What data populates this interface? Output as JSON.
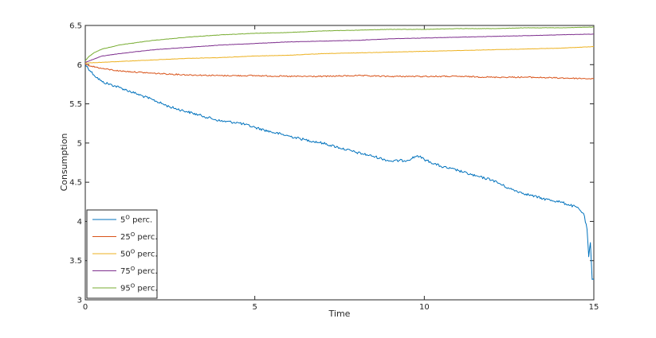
{
  "chart_data": {
    "type": "line",
    "title": "",
    "xlabel": "Time",
    "ylabel": "Consumption",
    "xlim": [
      0,
      15
    ],
    "ylim": [
      3,
      6.5
    ],
    "xticks": [
      0,
      5,
      10,
      15
    ],
    "yticks": [
      3,
      3.5,
      4,
      4.5,
      5,
      5.5,
      6,
      6.5
    ],
    "xtick_labels": [
      "0",
      "5",
      "10",
      "15"
    ],
    "ytick_labels": [
      "3",
      "3.5",
      "4",
      "4.5",
      "5",
      "5.5",
      "6",
      "6.5"
    ],
    "grid": false,
    "legend_position": "bottom-left",
    "series": [
      {
        "name_base": "5",
        "name_sup": "O",
        "name_suffix": " perc.",
        "color": "#0072BD",
        "x": [
          0,
          0.25,
          0.5,
          1,
          1.5,
          2,
          2.5,
          3,
          3.5,
          4,
          4.5,
          5,
          5.5,
          6,
          6.5,
          7,
          7.5,
          8,
          8.5,
          9,
          9.5,
          9.8,
          10,
          10.5,
          11,
          11.5,
          12,
          12.5,
          13,
          13.5,
          14,
          14.5,
          14.7,
          14.8,
          14.85,
          14.9,
          14.95,
          15
        ],
        "y": [
          6.0,
          5.87,
          5.78,
          5.71,
          5.63,
          5.55,
          5.46,
          5.4,
          5.34,
          5.28,
          5.26,
          5.2,
          5.14,
          5.09,
          5.04,
          5.0,
          4.94,
          4.88,
          4.83,
          4.77,
          4.78,
          4.84,
          4.79,
          4.7,
          4.65,
          4.58,
          4.53,
          4.42,
          4.35,
          4.29,
          4.25,
          4.18,
          4.1,
          3.9,
          3.55,
          3.73,
          3.26,
          3.26
        ]
      },
      {
        "name_base": "25",
        "name_sup": "O",
        "name_suffix": " perc.",
        "color": "#D95319",
        "x": [
          0,
          0.5,
          1,
          2,
          3,
          4,
          5,
          6,
          7,
          8,
          9,
          10,
          11,
          12,
          13,
          14,
          15
        ],
        "y": [
          6.0,
          5.95,
          5.92,
          5.89,
          5.87,
          5.86,
          5.86,
          5.85,
          5.85,
          5.86,
          5.85,
          5.85,
          5.85,
          5.84,
          5.84,
          5.83,
          5.82
        ]
      },
      {
        "name_base": "50",
        "name_sup": "O",
        "name_suffix": " perc.",
        "color": "#EDB120",
        "x": [
          0,
          0.5,
          1,
          2,
          3,
          4,
          5,
          6,
          7,
          8,
          9,
          10,
          11,
          12,
          13,
          14,
          15
        ],
        "y": [
          6.02,
          6.03,
          6.04,
          6.06,
          6.08,
          6.09,
          6.11,
          6.12,
          6.14,
          6.15,
          6.16,
          6.17,
          6.18,
          6.19,
          6.2,
          6.21,
          6.23
        ]
      },
      {
        "name_base": "75",
        "name_sup": "O",
        "name_suffix": " perc.",
        "color": "#7E2F8E",
        "x": [
          0,
          0.25,
          0.5,
          1,
          2,
          3,
          4,
          5,
          6,
          7,
          8,
          9,
          10,
          11,
          12,
          13,
          14,
          15
        ],
        "y": [
          6.03,
          6.07,
          6.11,
          6.14,
          6.19,
          6.22,
          6.25,
          6.27,
          6.29,
          6.3,
          6.31,
          6.33,
          6.34,
          6.35,
          6.36,
          6.37,
          6.38,
          6.39
        ]
      },
      {
        "name_base": "95",
        "name_sup": "O",
        "name_suffix": " perc.",
        "color": "#77AC30",
        "x": [
          0,
          0.1,
          0.25,
          0.5,
          1,
          1.5,
          2,
          3,
          4,
          5,
          6,
          7,
          8,
          9,
          10,
          11,
          12,
          13,
          14,
          15
        ],
        "y": [
          6.05,
          6.1,
          6.15,
          6.2,
          6.25,
          6.28,
          6.31,
          6.35,
          6.38,
          6.4,
          6.41,
          6.43,
          6.44,
          6.45,
          6.45,
          6.46,
          6.46,
          6.47,
          6.47,
          6.48
        ]
      }
    ]
  }
}
